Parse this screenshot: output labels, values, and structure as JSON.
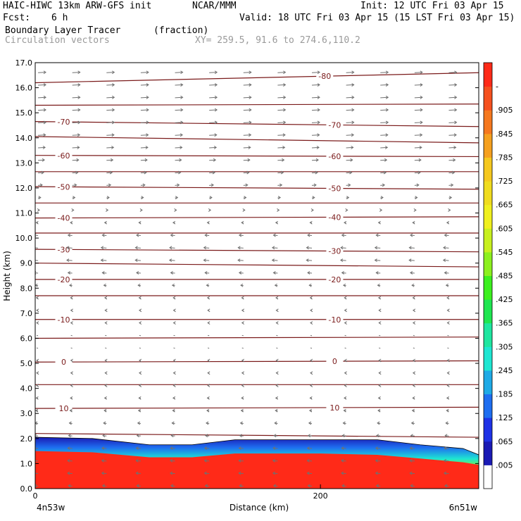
{
  "header": {
    "model": "HAIC-HIWC 13km ARW-GFS init",
    "org": "NCAR/MMM",
    "init": "Init: 12 UTC Fri 03 Apr 15",
    "fcst_label": "Fcst:",
    "fcst_value": "6 h",
    "valid": "Valid: 18 UTC Fri 03 Apr 15 (15 LST Fri 03 Apr 15)",
    "field": "Boundary Layer Tracer",
    "units": "(fraction)",
    "vectors": "Circulation vectors",
    "xy": "XY= 259.5, 91.6 to 274.6,110.2"
  },
  "colors": {
    "contour": "#7a1a1a",
    "vector": "#707070",
    "tracer_high": "#ff2a18"
  },
  "chart_data": {
    "type": "heatmap",
    "title": "Boundary Layer Tracer",
    "units": "(fraction)",
    "xlabel": "Distance (km)",
    "ylabel": "Height (km)",
    "xlim": [
      0,
      311
    ],
    "ylim": [
      0,
      17
    ],
    "x_ticks": [
      {
        "value": 0,
        "label": "0"
      },
      {
        "value": 200,
        "label": "200"
      }
    ],
    "x_end_labels": {
      "left": "4n53w",
      "right": "6n51w"
    },
    "y_ticks": [
      0.0,
      1.0,
      2.0,
      3.0,
      4.0,
      5.0,
      6.0,
      7.0,
      8.0,
      9.0,
      10.0,
      11.0,
      12.0,
      13.0,
      14.0,
      15.0,
      16.0,
      17.0
    ],
    "y_tick_labels": [
      "0.0",
      "1.0",
      "2.0",
      "3.0",
      "4.0",
      "5.0",
      "6.0",
      "7.0",
      "8.0",
      "9.0",
      "10.0",
      "11.0",
      "12.0",
      "13.0",
      "14.0",
      "15.0",
      "16.0",
      "17.0"
    ],
    "colorbar": {
      "labels": [
        ".005",
        ".065",
        ".125",
        ".185",
        ".245",
        ".305",
        ".365",
        ".425",
        ".485",
        ".545",
        ".605",
        ".665",
        ".725",
        ".785",
        ".845",
        ".905",
        "-"
      ],
      "colors": [
        "#ffffff",
        "#1a1ab4",
        "#1e32e6",
        "#1e6ef0",
        "#1eaae6",
        "#1ee6d2",
        "#1ee6a0",
        "#1ee650",
        "#3cf01e",
        "#8cf01e",
        "#c8f01e",
        "#f0f01e",
        "#f0dc1e",
        "#f5c81e",
        "#f5a01e",
        "#f5781e",
        "#f5501e",
        "#ff2a18"
      ]
    },
    "tracer_top_km": [
      {
        "x": 0,
        "y": 2.05
      },
      {
        "x": 40,
        "y": 2.0
      },
      {
        "x": 80,
        "y": 1.75
      },
      {
        "x": 110,
        "y": 1.75
      },
      {
        "x": 140,
        "y": 1.95
      },
      {
        "x": 180,
        "y": 1.95
      },
      {
        "x": 205,
        "y": 1.95
      },
      {
        "x": 240,
        "y": 1.95
      },
      {
        "x": 270,
        "y": 1.75
      },
      {
        "x": 300,
        "y": 1.6
      },
      {
        "x": 311,
        "y": 1.35
      }
    ],
    "tracer_red_top_km": [
      {
        "x": 0,
        "y": 1.5
      },
      {
        "x": 40,
        "y": 1.45
      },
      {
        "x": 80,
        "y": 1.25
      },
      {
        "x": 110,
        "y": 1.25
      },
      {
        "x": 140,
        "y": 1.4
      },
      {
        "x": 200,
        "y": 1.4
      },
      {
        "x": 240,
        "y": 1.35
      },
      {
        "x": 270,
        "y": 1.2
      },
      {
        "x": 300,
        "y": 1.05
      },
      {
        "x": 311,
        "y": 0.95
      }
    ],
    "temperature_contours": [
      {
        "label": "-80",
        "y0": 16.2,
        "y1": 16.6,
        "labels_x": [
          203
        ]
      },
      {
        "label": "",
        "y0": 15.3,
        "y1": 15.35,
        "labels_x": []
      },
      {
        "label": "-70",
        "y0": 14.65,
        "y1": 14.45,
        "labels_x": [
          20,
          210
        ]
      },
      {
        "label": "",
        "y0": 14.05,
        "y1": 13.8,
        "labels_x": []
      },
      {
        "label": "-60",
        "y0": 13.3,
        "y1": 13.25,
        "labels_x": [
          20,
          210
        ]
      },
      {
        "label": "",
        "y0": 12.65,
        "y1": 12.65,
        "labels_x": []
      },
      {
        "label": "-50",
        "y0": 12.05,
        "y1": 11.95,
        "labels_x": [
          20,
          210
        ]
      },
      {
        "label": "",
        "y0": 11.4,
        "y1": 11.4,
        "labels_x": []
      },
      {
        "label": "-40",
        "y0": 10.8,
        "y1": 10.85,
        "labels_x": [
          20,
          210
        ]
      },
      {
        "label": "",
        "y0": 10.2,
        "y1": 10.2,
        "labels_x": []
      },
      {
        "label": "-30",
        "y0": 9.55,
        "y1": 9.45,
        "labels_x": [
          20,
          210
        ]
      },
      {
        "label": "",
        "y0": 9.0,
        "y1": 8.85,
        "labels_x": []
      },
      {
        "label": "-20",
        "y0": 8.35,
        "y1": 8.35,
        "labels_x": [
          20,
          210
        ]
      },
      {
        "label": "",
        "y0": 7.7,
        "y1": 7.7,
        "labels_x": []
      },
      {
        "label": "-10",
        "y0": 6.75,
        "y1": 6.75,
        "labels_x": [
          20,
          210
        ]
      },
      {
        "label": "",
        "y0": 6.0,
        "y1": 6.05,
        "labels_x": []
      },
      {
        "label": "0",
        "y0": 5.05,
        "y1": 5.1,
        "labels_x": [
          20,
          210
        ]
      },
      {
        "label": "",
        "y0": 4.15,
        "y1": 4.15,
        "labels_x": []
      },
      {
        "label": "10",
        "y0": 3.2,
        "y1": 3.25,
        "labels_x": [
          20,
          210
        ]
      },
      {
        "label": "",
        "y0": 2.2,
        "y1": 2.05,
        "labels_x": []
      }
    ],
    "wind_profile": [
      {
        "z": 16.5,
        "u": 1
      },
      {
        "z": 15.5,
        "u": 1
      },
      {
        "z": 14.5,
        "u": 1
      },
      {
        "z": 13.5,
        "u": 0.9
      },
      {
        "z": 12.5,
        "u": 0.7
      },
      {
        "z": 11.5,
        "u": 0.3
      },
      {
        "z": 11.0,
        "u": 0
      },
      {
        "z": 10.5,
        "u": -0.3
      },
      {
        "z": 10.0,
        "u": -0.6
      },
      {
        "z": 9.5,
        "u": -0.7
      },
      {
        "z": 9.0,
        "u": -0.7
      },
      {
        "z": 8.5,
        "u": -0.5
      },
      {
        "z": 8.0,
        "u": -0.3
      },
      {
        "z": 7.5,
        "u": -0.2
      },
      {
        "z": 7.0,
        "u": -0.1
      },
      {
        "z": 6.0,
        "u": 0
      },
      {
        "z": 5.0,
        "u": -0.1
      },
      {
        "z": 4.0,
        "u": -0.2
      },
      {
        "z": 3.0,
        "u": -0.3
      },
      {
        "z": 2.5,
        "u": -0.4
      },
      {
        "z": 2.0,
        "u": -0.5
      },
      {
        "z": 1.5,
        "u": -0.6
      },
      {
        "z": 1.0,
        "u": -0.6
      },
      {
        "z": 0.5,
        "u": -0.6
      },
      {
        "z": 0.1,
        "u": -0.5
      }
    ]
  }
}
